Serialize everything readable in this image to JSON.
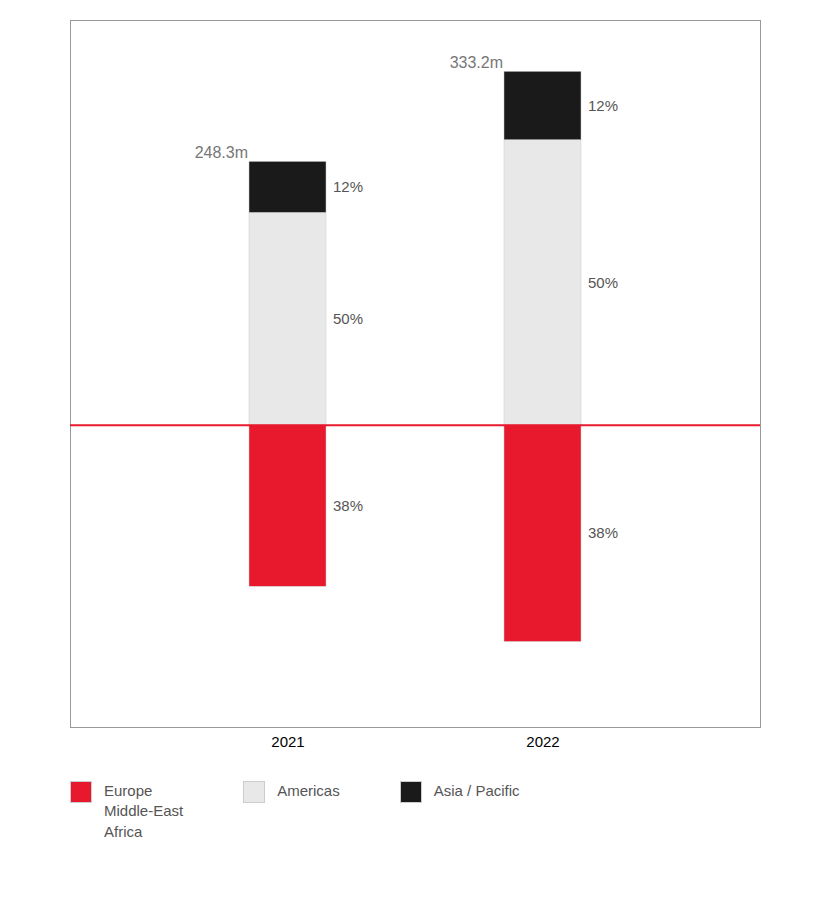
{
  "chart_data": {
    "type": "bar",
    "stacked": true,
    "categories": [
      "2021",
      "2022"
    ],
    "series": [
      {
        "name": "Europe\nMiddle-East\nAfrica",
        "color": "#e8192c",
        "values": [
          -94.354,
          -126.616
        ],
        "share_labels": [
          "38%",
          "38%"
        ]
      },
      {
        "name": "Americas",
        "color": "#e8e8e8",
        "values": [
          124.15,
          166.6
        ],
        "share_labels": [
          "50%",
          "50%"
        ]
      },
      {
        "name": "Asia / Pacific",
        "color": "#1a1a1a",
        "values": [
          29.796,
          39.984
        ],
        "share_labels": [
          "12%",
          "12%"
        ]
      }
    ],
    "total_labels": [
      "248.3m",
      "333.2m"
    ],
    "ylim": [
      -176.616,
      236.584
    ],
    "tick_labels": "x",
    "legend": "bottom"
  }
}
